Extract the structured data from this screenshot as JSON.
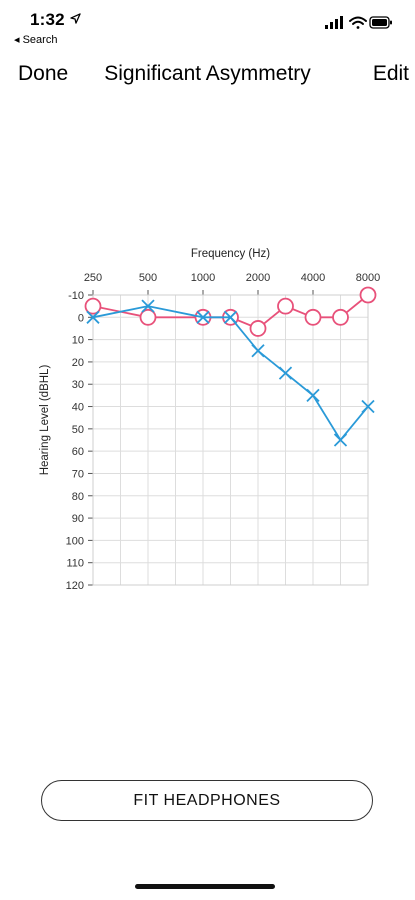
{
  "status_bar": {
    "time": "1:32",
    "location_icon": "location-arrow-icon",
    "back_label": "◂ Search",
    "icons": [
      "cellular-signal-icon",
      "wifi-icon",
      "battery-icon"
    ]
  },
  "nav": {
    "left_button": "Done",
    "title": "Significant Asymmetry",
    "right_button": "Edit"
  },
  "chart_data": {
    "type": "line",
    "title": "Frequency (Hz)",
    "xlabel": "Frequency (Hz)",
    "ylabel": "Hearing Level (dBHL)",
    "x_ticks": [
      "250",
      "500",
      "1000",
      "2000",
      "4000",
      "8000"
    ],
    "x_tick_positions_octave": [
      0,
      1,
      2,
      3,
      4,
      5
    ],
    "y_ticks": [
      -10,
      0,
      10,
      20,
      30,
      40,
      50,
      60,
      70,
      80,
      90,
      100,
      110,
      120
    ],
    "ylim": [
      -10,
      120
    ],
    "y_inverted": true,
    "grid": true,
    "series": [
      {
        "marker": "circle",
        "color": "#e8517a",
        "points": [
          {
            "x_octave": 0,
            "y": -5
          },
          {
            "x_octave": 1,
            "y": 0
          },
          {
            "x_octave": 2,
            "y": 0
          },
          {
            "x_octave": 2.5,
            "y": 0
          },
          {
            "x_octave": 3,
            "y": 5
          },
          {
            "x_octave": 3.5,
            "y": -5
          },
          {
            "x_octave": 4,
            "y": 0
          },
          {
            "x_octave": 4.5,
            "y": 0
          },
          {
            "x_octave": 5,
            "y": -10
          }
        ]
      },
      {
        "marker": "cross",
        "color": "#2a9ad8",
        "points": [
          {
            "x_octave": 0,
            "y": 0
          },
          {
            "x_octave": 1,
            "y": -5
          },
          {
            "x_octave": 2,
            "y": 0
          },
          {
            "x_octave": 2.5,
            "y": 0
          },
          {
            "x_octave": 3,
            "y": 15
          },
          {
            "x_octave": 3.5,
            "y": 25
          },
          {
            "x_octave": 4,
            "y": 35
          },
          {
            "x_octave": 4.5,
            "y": 55
          },
          {
            "x_octave": 5,
            "y": 40
          }
        ]
      }
    ]
  },
  "footer": {
    "fit_button": "FIT HEADPHONES"
  }
}
